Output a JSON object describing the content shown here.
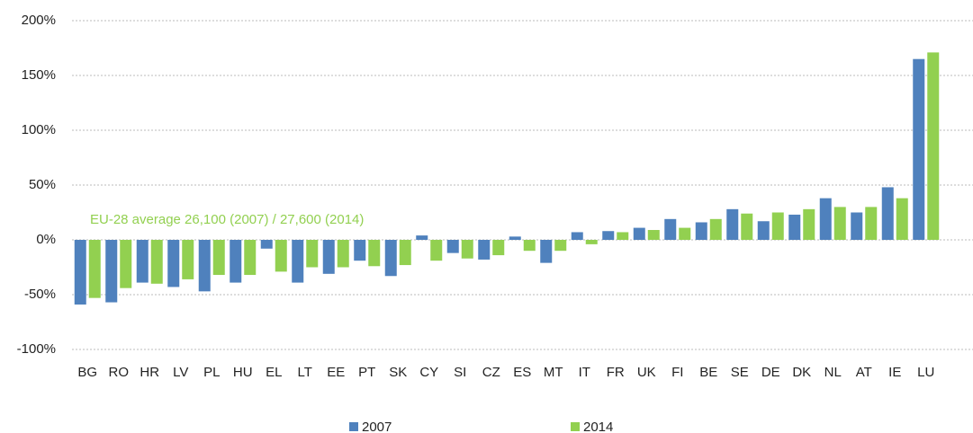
{
  "chart_data": {
    "type": "bar",
    "annotation": "EU-28 average 26,100 (2007) / 27,600 (2014)",
    "annotation_color": "#92d050",
    "categories": [
      "BG",
      "RO",
      "HR",
      "LV",
      "PL",
      "HU",
      "EL",
      "LT",
      "EE",
      "PT",
      "SK",
      "CY",
      "SI",
      "CZ",
      "ES",
      "MT",
      "IT",
      "FR",
      "UK",
      "FI",
      "BE",
      "SE",
      "DE",
      "DK",
      "NL",
      "AT",
      "IE",
      "LU"
    ],
    "series": [
      {
        "name": "2007",
        "color": "#4f81bd",
        "values": [
          -59,
          -57,
          -39,
          -43,
          -47,
          -39,
          -8,
          -39,
          -31,
          -19,
          -33,
          4,
          -12,
          -18,
          3,
          -21,
          7,
          8,
          11,
          19,
          16,
          28,
          17,
          23,
          38,
          25,
          48,
          165
        ]
      },
      {
        "name": "2014",
        "color": "#92d050",
        "values": [
          -53,
          -44,
          -40,
          -36,
          -32,
          -32,
          -29,
          -25,
          -25,
          -24,
          -23,
          -19,
          -17,
          -14,
          -10,
          -10,
          -4,
          7,
          9,
          11,
          19,
          24,
          25,
          28,
          30,
          30,
          38,
          171
        ]
      }
    ],
    "ylim": [
      -100,
      200
    ],
    "yticks": [
      {
        "value": -100,
        "label": "-100%"
      },
      {
        "value": -50,
        "label": "-50%"
      },
      {
        "value": 0,
        "label": "0%"
      },
      {
        "value": 50,
        "label": "50%"
      },
      {
        "value": 100,
        "label": "100%"
      },
      {
        "value": 150,
        "label": "150%"
      },
      {
        "value": 200,
        "label": "200%"
      }
    ],
    "grid": true
  }
}
